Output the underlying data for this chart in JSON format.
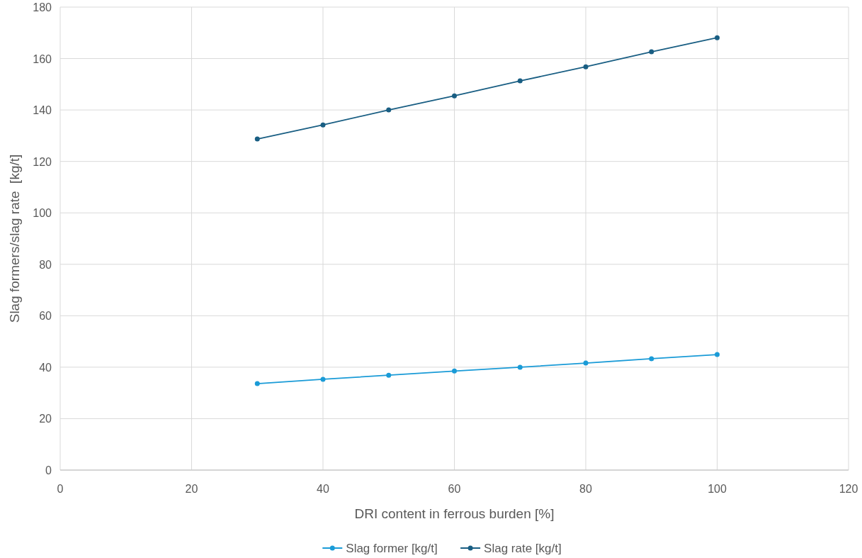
{
  "chart_data": {
    "type": "line",
    "xlabel": "DRI content in ferrous burden [%]",
    "ylabel": "Slag formers/slag rate  [kg/t]",
    "x": [
      30,
      40,
      50,
      60,
      70,
      80,
      90,
      100
    ],
    "series": [
      {
        "name": "Slag former [kg/t]",
        "color": "#1a9bd7",
        "values": [
          33.6,
          35.3,
          36.9,
          38.5,
          40.0,
          41.6,
          43.3,
          44.9
        ]
      },
      {
        "name": "Slag rate [kg/t]",
        "color": "#195e83",
        "values": [
          128.7,
          134.2,
          140.0,
          145.5,
          151.3,
          156.8,
          162.6,
          168.1
        ]
      }
    ],
    "xlim": [
      0,
      120
    ],
    "xticks": [
      0,
      20,
      40,
      60,
      80,
      100,
      120
    ],
    "ylim": [
      0,
      180
    ],
    "yticks": [
      0,
      20,
      40,
      60,
      80,
      100,
      120,
      140,
      160,
      180
    ],
    "grid": true,
    "legend": "bottom",
    "marker": "circle",
    "line_style": "solid"
  }
}
